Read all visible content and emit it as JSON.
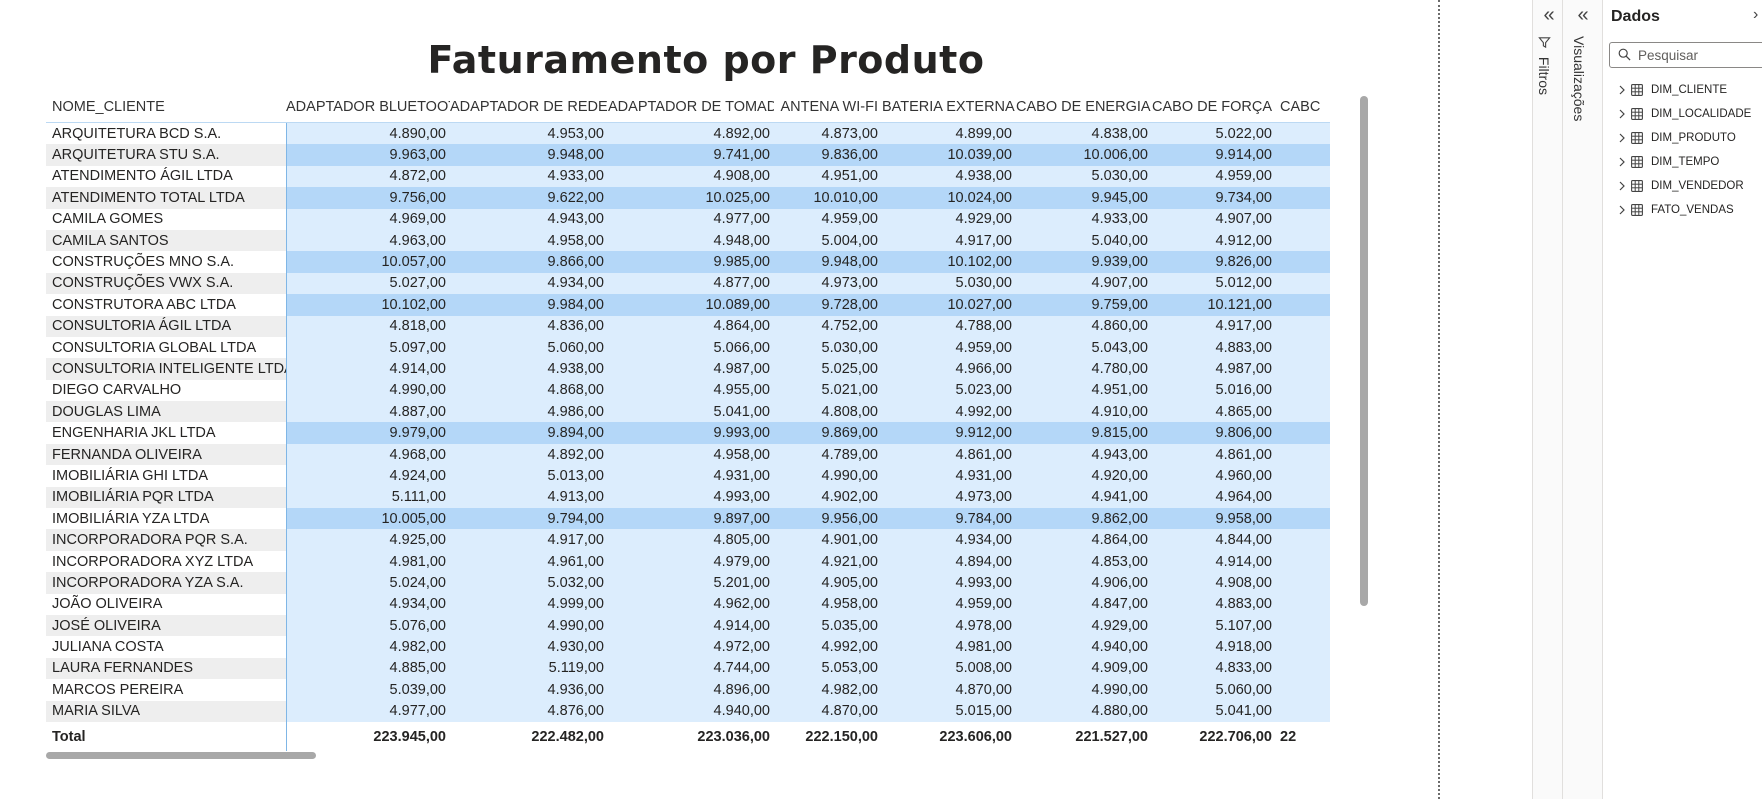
{
  "report": {
    "title": "Faturamento por Produto"
  },
  "matrix": {
    "row_header": "NOME_CLIENTE",
    "columns": [
      "ADAPTADOR BLUETOOTH",
      "ADAPTADOR DE REDE",
      "ADAPTADOR DE TOMADA",
      "ANTENA WI-FI",
      "BATERIA EXTERNA",
      "CABO DE ENERGIA",
      "CABO DE FORÇA",
      "CABC"
    ],
    "rows": [
      {
        "name": "ARQUITETURA BCD S.A.",
        "values": [
          "4.890,00",
          "4.953,00",
          "4.892,00",
          "4.873,00",
          "4.899,00",
          "4.838,00",
          "5.022,00",
          ""
        ],
        "hi": false
      },
      {
        "name": "ARQUITETURA STU S.A.",
        "values": [
          "9.963,00",
          "9.948,00",
          "9.741,00",
          "9.836,00",
          "10.039,00",
          "10.006,00",
          "9.914,00",
          ""
        ],
        "hi": true
      },
      {
        "name": "ATENDIMENTO ÁGIL LTDA",
        "values": [
          "4.872,00",
          "4.933,00",
          "4.908,00",
          "4.951,00",
          "4.938,00",
          "5.030,00",
          "4.959,00",
          ""
        ],
        "hi": false
      },
      {
        "name": "ATENDIMENTO TOTAL LTDA",
        "values": [
          "9.756,00",
          "9.622,00",
          "10.025,00",
          "10.010,00",
          "10.024,00",
          "9.945,00",
          "9.734,00",
          ""
        ],
        "hi": true
      },
      {
        "name": "CAMILA GOMES",
        "values": [
          "4.969,00",
          "4.943,00",
          "4.977,00",
          "4.959,00",
          "4.929,00",
          "4.933,00",
          "4.907,00",
          ""
        ],
        "hi": false
      },
      {
        "name": "CAMILA SANTOS",
        "values": [
          "4.963,00",
          "4.958,00",
          "4.948,00",
          "5.004,00",
          "4.917,00",
          "5.040,00",
          "4.912,00",
          ""
        ],
        "hi": false
      },
      {
        "name": "CONSTRUÇÕES MNO S.A.",
        "values": [
          "10.057,00",
          "9.866,00",
          "9.985,00",
          "9.948,00",
          "10.102,00",
          "9.939,00",
          "9.826,00",
          ""
        ],
        "hi": true
      },
      {
        "name": "CONSTRUÇÕES VWX S.A.",
        "values": [
          "5.027,00",
          "4.934,00",
          "4.877,00",
          "4.973,00",
          "5.030,00",
          "4.907,00",
          "5.012,00",
          ""
        ],
        "hi": false
      },
      {
        "name": "CONSTRUTORA ABC LTDA",
        "values": [
          "10.102,00",
          "9.984,00",
          "10.089,00",
          "9.728,00",
          "10.027,00",
          "9.759,00",
          "10.121,00",
          ""
        ],
        "hi": true
      },
      {
        "name": "CONSULTORIA ÁGIL LTDA",
        "values": [
          "4.818,00",
          "4.836,00",
          "4.864,00",
          "4.752,00",
          "4.788,00",
          "4.860,00",
          "4.917,00",
          ""
        ],
        "hi": false
      },
      {
        "name": "CONSULTORIA GLOBAL LTDA",
        "values": [
          "5.097,00",
          "5.060,00",
          "5.066,00",
          "5.030,00",
          "4.959,00",
          "5.043,00",
          "4.883,00",
          ""
        ],
        "hi": false
      },
      {
        "name": "CONSULTORIA INTELIGENTE LTDA",
        "values": [
          "4.914,00",
          "4.938,00",
          "4.987,00",
          "5.025,00",
          "4.966,00",
          "4.780,00",
          "4.987,00",
          ""
        ],
        "hi": false
      },
      {
        "name": "DIEGO CARVALHO",
        "values": [
          "4.990,00",
          "4.868,00",
          "4.955,00",
          "5.021,00",
          "5.023,00",
          "4.951,00",
          "5.016,00",
          ""
        ],
        "hi": false
      },
      {
        "name": "DOUGLAS LIMA",
        "values": [
          "4.887,00",
          "4.986,00",
          "5.041,00",
          "4.808,00",
          "4.992,00",
          "4.910,00",
          "4.865,00",
          ""
        ],
        "hi": false
      },
      {
        "name": "ENGENHARIA JKL LTDA",
        "values": [
          "9.979,00",
          "9.894,00",
          "9.993,00",
          "9.869,00",
          "9.912,00",
          "9.815,00",
          "9.806,00",
          ""
        ],
        "hi": true
      },
      {
        "name": "FERNANDA OLIVEIRA",
        "values": [
          "4.968,00",
          "4.892,00",
          "4.958,00",
          "4.789,00",
          "4.861,00",
          "4.943,00",
          "4.861,00",
          ""
        ],
        "hi": false
      },
      {
        "name": "IMOBILIÁRIA GHI LTDA",
        "values": [
          "4.924,00",
          "5.013,00",
          "4.931,00",
          "4.990,00",
          "4.931,00",
          "4.920,00",
          "4.960,00",
          ""
        ],
        "hi": false
      },
      {
        "name": "IMOBILIÁRIA PQR LTDA",
        "values": [
          "5.111,00",
          "4.913,00",
          "4.993,00",
          "4.902,00",
          "4.973,00",
          "4.941,00",
          "4.964,00",
          ""
        ],
        "hi": false
      },
      {
        "name": "IMOBILIÁRIA YZA LTDA",
        "values": [
          "10.005,00",
          "9.794,00",
          "9.897,00",
          "9.956,00",
          "9.784,00",
          "9.862,00",
          "9.958,00",
          ""
        ],
        "hi": true
      },
      {
        "name": "INCORPORADORA PQR S.A.",
        "values": [
          "4.925,00",
          "4.917,00",
          "4.805,00",
          "4.901,00",
          "4.934,00",
          "4.864,00",
          "4.844,00",
          ""
        ],
        "hi": false
      },
      {
        "name": "INCORPORADORA XYZ LTDA",
        "values": [
          "4.981,00",
          "4.961,00",
          "4.979,00",
          "4.921,00",
          "4.894,00",
          "4.853,00",
          "4.914,00",
          ""
        ],
        "hi": false
      },
      {
        "name": "INCORPORADORA YZA S.A.",
        "values": [
          "5.024,00",
          "5.032,00",
          "5.201,00",
          "4.905,00",
          "4.993,00",
          "4.906,00",
          "4.908,00",
          ""
        ],
        "hi": false
      },
      {
        "name": "JOÃO OLIVEIRA",
        "values": [
          "4.934,00",
          "4.999,00",
          "4.962,00",
          "4.958,00",
          "4.959,00",
          "4.847,00",
          "4.883,00",
          ""
        ],
        "hi": false
      },
      {
        "name": "JOSÉ OLIVEIRA",
        "values": [
          "5.076,00",
          "4.990,00",
          "4.914,00",
          "5.035,00",
          "4.978,00",
          "4.929,00",
          "5.107,00",
          ""
        ],
        "hi": false
      },
      {
        "name": "JULIANA COSTA",
        "values": [
          "4.982,00",
          "4.930,00",
          "4.972,00",
          "4.992,00",
          "4.981,00",
          "4.940,00",
          "4.918,00",
          ""
        ],
        "hi": false
      },
      {
        "name": "LAURA FERNANDES",
        "values": [
          "4.885,00",
          "5.119,00",
          "4.744,00",
          "5.053,00",
          "5.008,00",
          "4.909,00",
          "4.833,00",
          ""
        ],
        "hi": false
      },
      {
        "name": "MARCOS PEREIRA",
        "values": [
          "5.039,00",
          "4.936,00",
          "4.896,00",
          "4.982,00",
          "4.870,00",
          "4.990,00",
          "5.060,00",
          ""
        ],
        "hi": false
      },
      {
        "name": "MARIA SILVA",
        "values": [
          "4.977,00",
          "4.876,00",
          "4.940,00",
          "4.870,00",
          "5.015,00",
          "4.880,00",
          "5.041,00",
          ""
        ],
        "hi": false
      }
    ],
    "total": {
      "label": "Total",
      "values": [
        "223.945,00",
        "222.482,00",
        "223.036,00",
        "222.150,00",
        "223.606,00",
        "221.527,00",
        "222.706,00",
        "22"
      ]
    }
  },
  "panes": {
    "filters_label": "Filtros",
    "visualizations_label": "Visualizações",
    "data": {
      "title": "Dados",
      "search_placeholder": "Pesquisar",
      "tables": [
        "DIM_CLIENTE",
        "DIM_LOCALIDADE",
        "DIM_PRODUTO",
        "DIM_TEMPO",
        "DIM_VENDEDOR",
        "FATO_VENDAS"
      ]
    }
  },
  "icons": {
    "filters_collapse": "double-chevron-left-icon",
    "viz_collapse": "double-chevron-left-icon",
    "filter": "funnel-icon",
    "search": "search-icon",
    "expand": "chevron-right-icon",
    "table": "table-icon"
  }
}
